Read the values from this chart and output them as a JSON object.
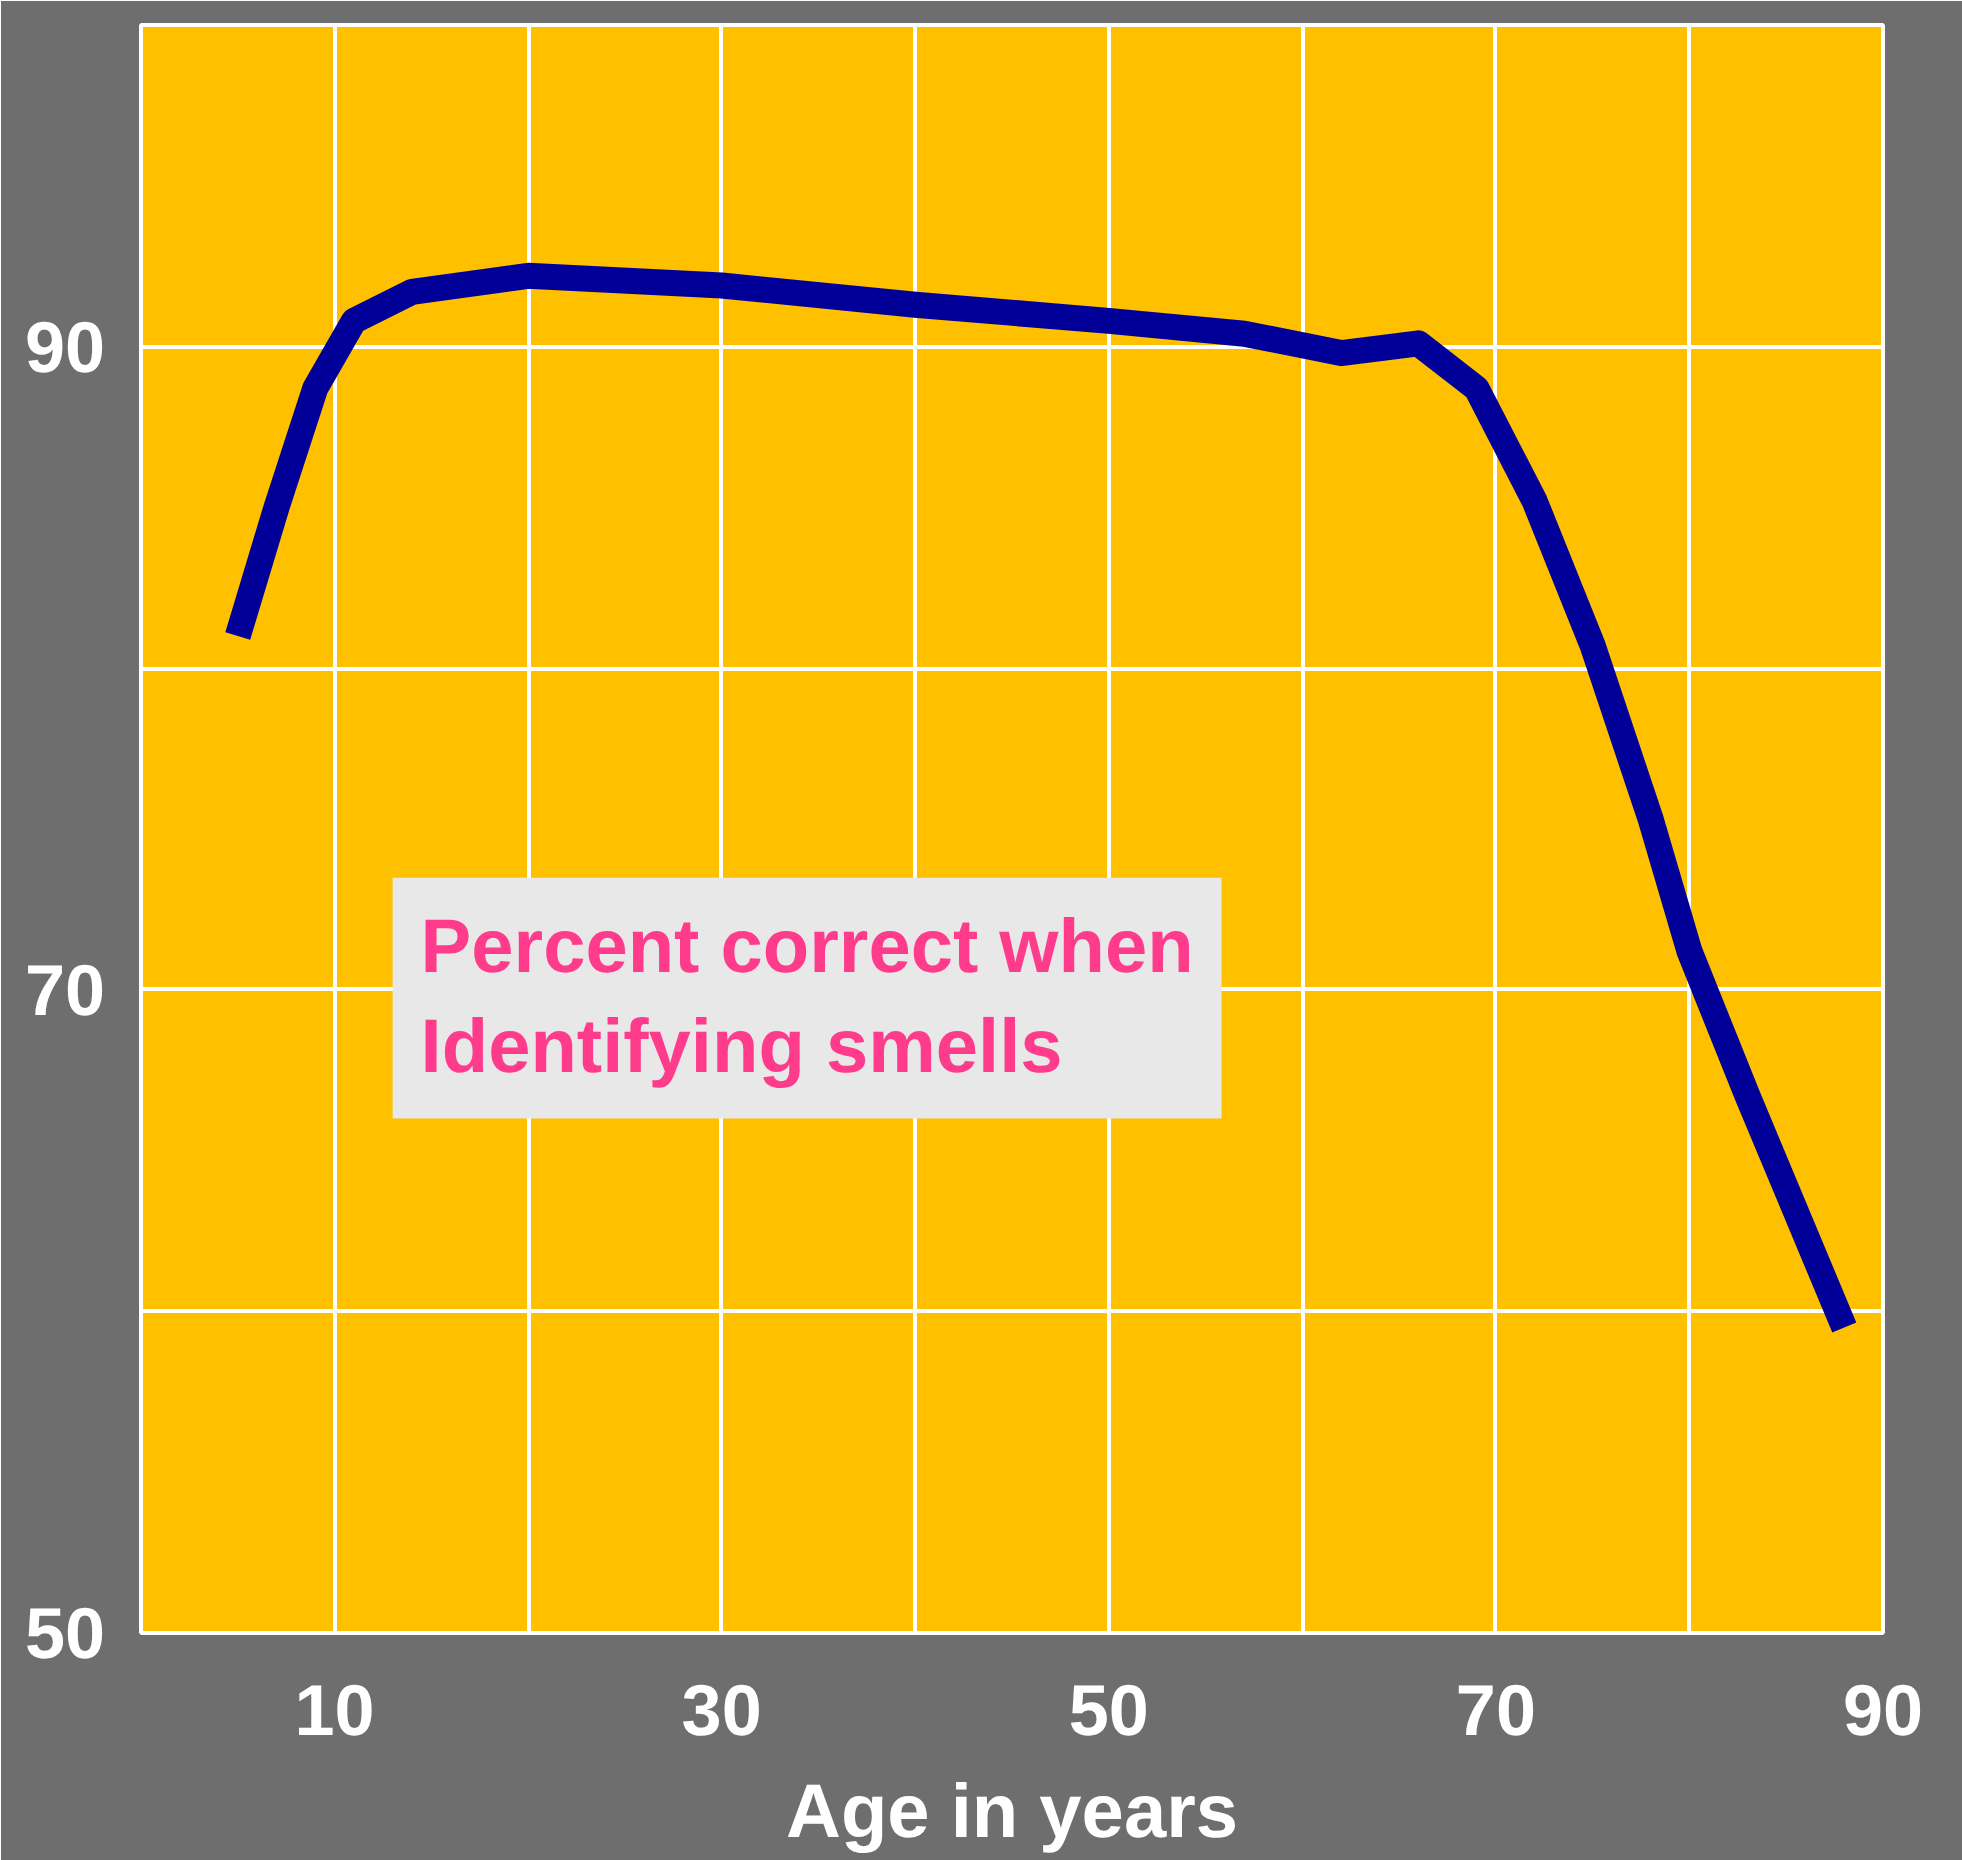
{
  "chart_data": {
    "type": "line",
    "xlabel": "Age in years",
    "x": [
      5,
      7,
      9,
      11,
      14,
      20,
      30,
      40,
      50,
      57,
      62,
      66,
      69,
      72,
      75,
      78,
      80,
      83,
      88
    ],
    "series": [
      {
        "color": "#000099",
        "values": [
          81,
          85,
          88.7,
          90.8,
          91.7,
          92.2,
          91.9,
          91.3,
          90.8,
          90.4,
          89.8,
          90.1,
          88.7,
          85.2,
          80.7,
          75.3,
          71.2,
          66.7,
          59.5
        ]
      }
    ],
    "xlim": [
      0,
      90
    ],
    "ylim": [
      50,
      100
    ],
    "xticks": [
      {
        "value": 0,
        "label": null
      },
      10,
      {
        "value": 20,
        "label": null
      },
      30,
      {
        "value": 40,
        "label": null
      },
      50,
      {
        "value": 60,
        "label": null
      },
      70,
      {
        "value": 80,
        "label": null
      },
      90
    ],
    "yticks": [
      50,
      {
        "value": 60,
        "label": null
      },
      70,
      {
        "value": 80,
        "label": null
      },
      90,
      {
        "value": 100,
        "label": null
      }
    ],
    "grid": true,
    "marker": "none",
    "line_style": "solid",
    "annotations": [
      "Percent correct when\nIdentifying smells"
    ]
  }
}
